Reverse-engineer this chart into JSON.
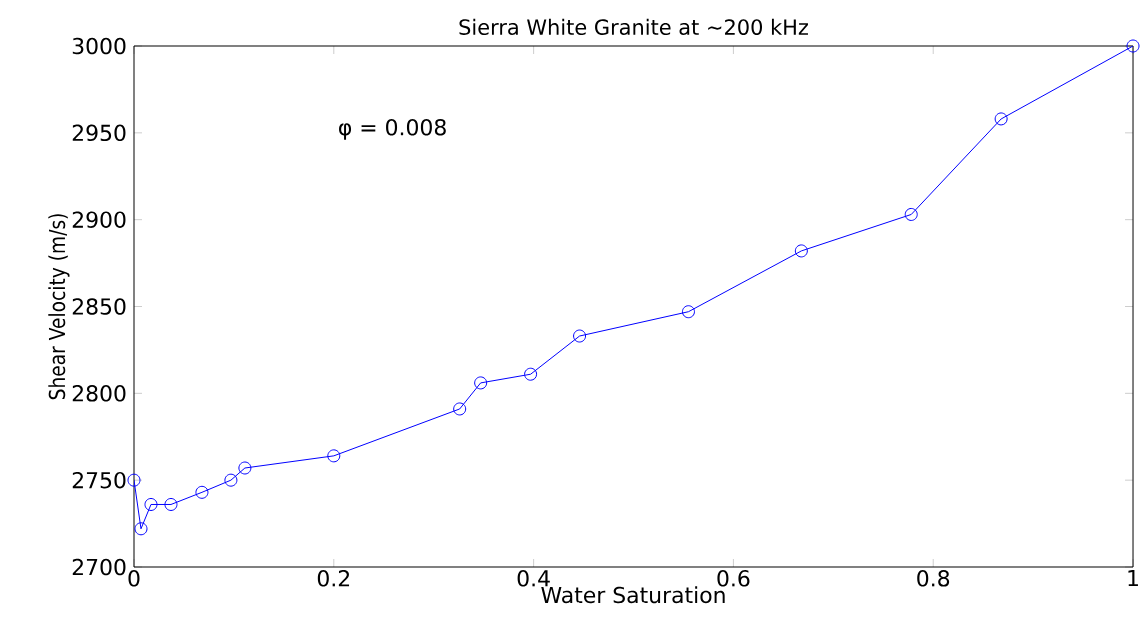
{
  "chart_data": {
    "type": "line",
    "title": "Sierra White Granite at ~200 kHz",
    "xlabel": "Water Saturation",
    "ylabel": "Shear Velocity (m/s)",
    "annotations": [
      "φ = 0.008"
    ],
    "x": [
      0,
      0.007,
      0.017,
      0.037,
      0.068,
      0.097,
      0.111,
      0.2,
      0.326,
      0.347,
      0.397,
      0.446,
      0.555,
      0.668,
      0.778,
      0.868,
      1
    ],
    "series": [
      {
        "color": "#0000ff",
        "values": [
          2750,
          2722,
          2736,
          2736,
          2743,
          2750,
          2757,
          2764,
          2791,
          2806,
          2811,
          2833,
          2847,
          2882,
          2903,
          2958,
          3000
        ]
      }
    ],
    "xlim": [
      0,
      1
    ],
    "ylim": [
      2700,
      3000
    ],
    "xticks": [
      0,
      0.2,
      0.4,
      0.6,
      0.8,
      1
    ],
    "yticks": [
      2700,
      2750,
      2800,
      2850,
      2900,
      2950,
      3000
    ],
    "grid": false,
    "legend": false,
    "marker": "circle",
    "line_style": "solid"
  }
}
